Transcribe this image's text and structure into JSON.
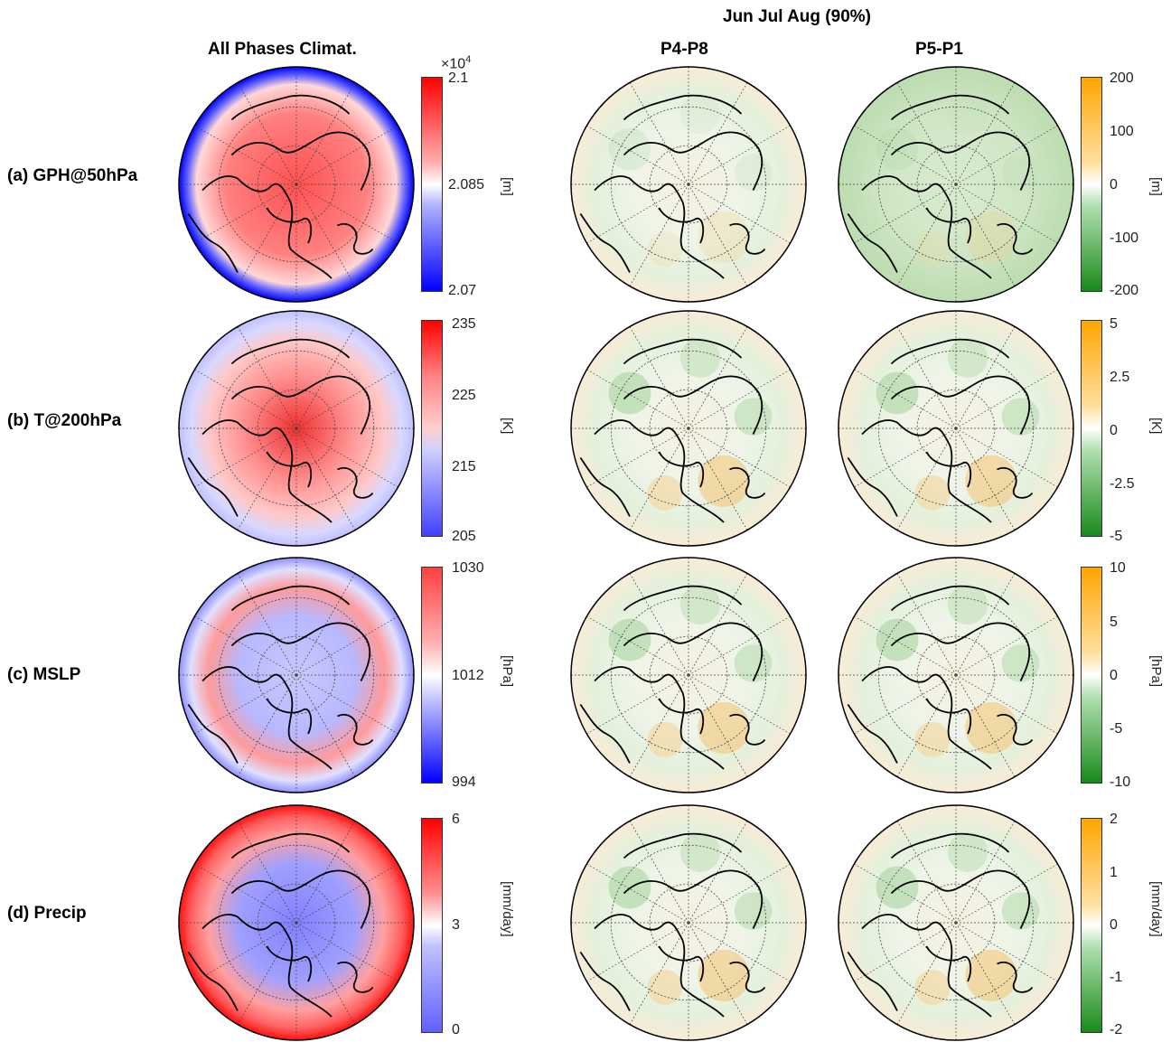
{
  "header": {
    "season": "Jun  Jul  Aug  (90%)",
    "col_climat": "All Phases Climat.",
    "col_p4p8": "P4-P8",
    "col_p5p1": "P5-P1"
  },
  "rows": [
    {
      "label": "(a) GPH@50hPa",
      "clim_bar": {
        "exponent": "×10",
        "exp_power": "4",
        "ticks": [
          "2.1",
          "2.085",
          "2.07"
        ],
        "unit": "[m]"
      },
      "anom_bar": {
        "ticks": [
          "200",
          "100",
          "0",
          "-100",
          "-200"
        ],
        "unit": "[m]"
      }
    },
    {
      "label": "(b) T@200hPa",
      "clim_bar": {
        "ticks": [
          "235",
          "225",
          "215",
          "205"
        ],
        "unit": "[K]"
      },
      "anom_bar": {
        "ticks": [
          "5",
          "2.5",
          "0",
          "-2.5",
          "-5"
        ],
        "unit": "[K]"
      }
    },
    {
      "label": "(c) MSLP",
      "clim_bar": {
        "ticks": [
          "1030",
          "1012",
          "994"
        ],
        "unit": "[hPa]"
      },
      "anom_bar": {
        "ticks": [
          "10",
          "5",
          "0",
          "-5",
          "-10"
        ],
        "unit": "[hPa]"
      }
    },
    {
      "label": "(d) Precip",
      "clim_bar": {
        "ticks": [
          "6",
          "3",
          "0"
        ],
        "unit": "[mm/day]"
      },
      "anom_bar": {
        "ticks": [
          "2",
          "1",
          "0",
          "-1",
          "-2"
        ],
        "unit": "[mm/day]"
      }
    }
  ],
  "colors": {
    "clim_high": "#ff0000",
    "clim_mid": "#ffffff",
    "clim_low": "#0000ff",
    "anom_high": "#ffa500",
    "anom_mid": "#ffffff",
    "anom_low": "#1a8a1a",
    "coast": "#000000"
  }
}
